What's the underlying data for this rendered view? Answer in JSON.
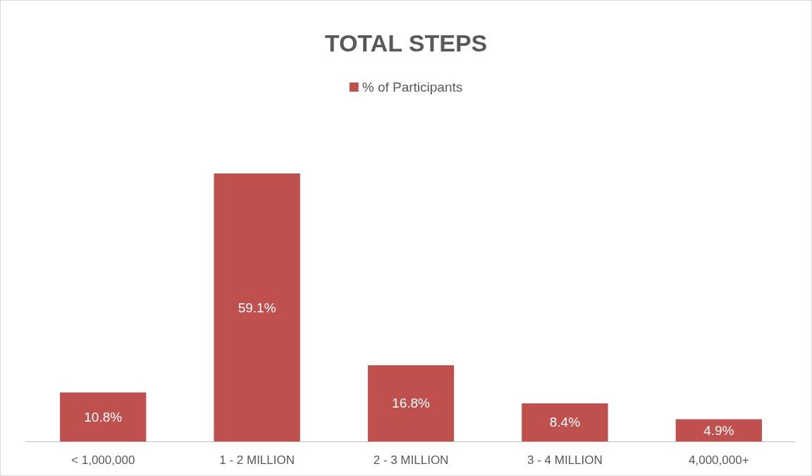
{
  "chart_data": {
    "type": "bar",
    "title": "TOTAL STEPS",
    "legend": "top",
    "categories": [
      "< 1,000,000",
      "1 - 2 MILLION",
      "2 - 3 MILLION",
      "3 - 4 MILLION",
      "4,000,000+"
    ],
    "series": [
      {
        "name": "% of Participants",
        "color": "#c0504d",
        "values": [
          10.8,
          59.1,
          16.8,
          8.4,
          4.9
        ],
        "value_labels": [
          "10.8%",
          "59.1%",
          "16.8%",
          "8.4%",
          "4.9%"
        ]
      }
    ],
    "grid": false
  }
}
